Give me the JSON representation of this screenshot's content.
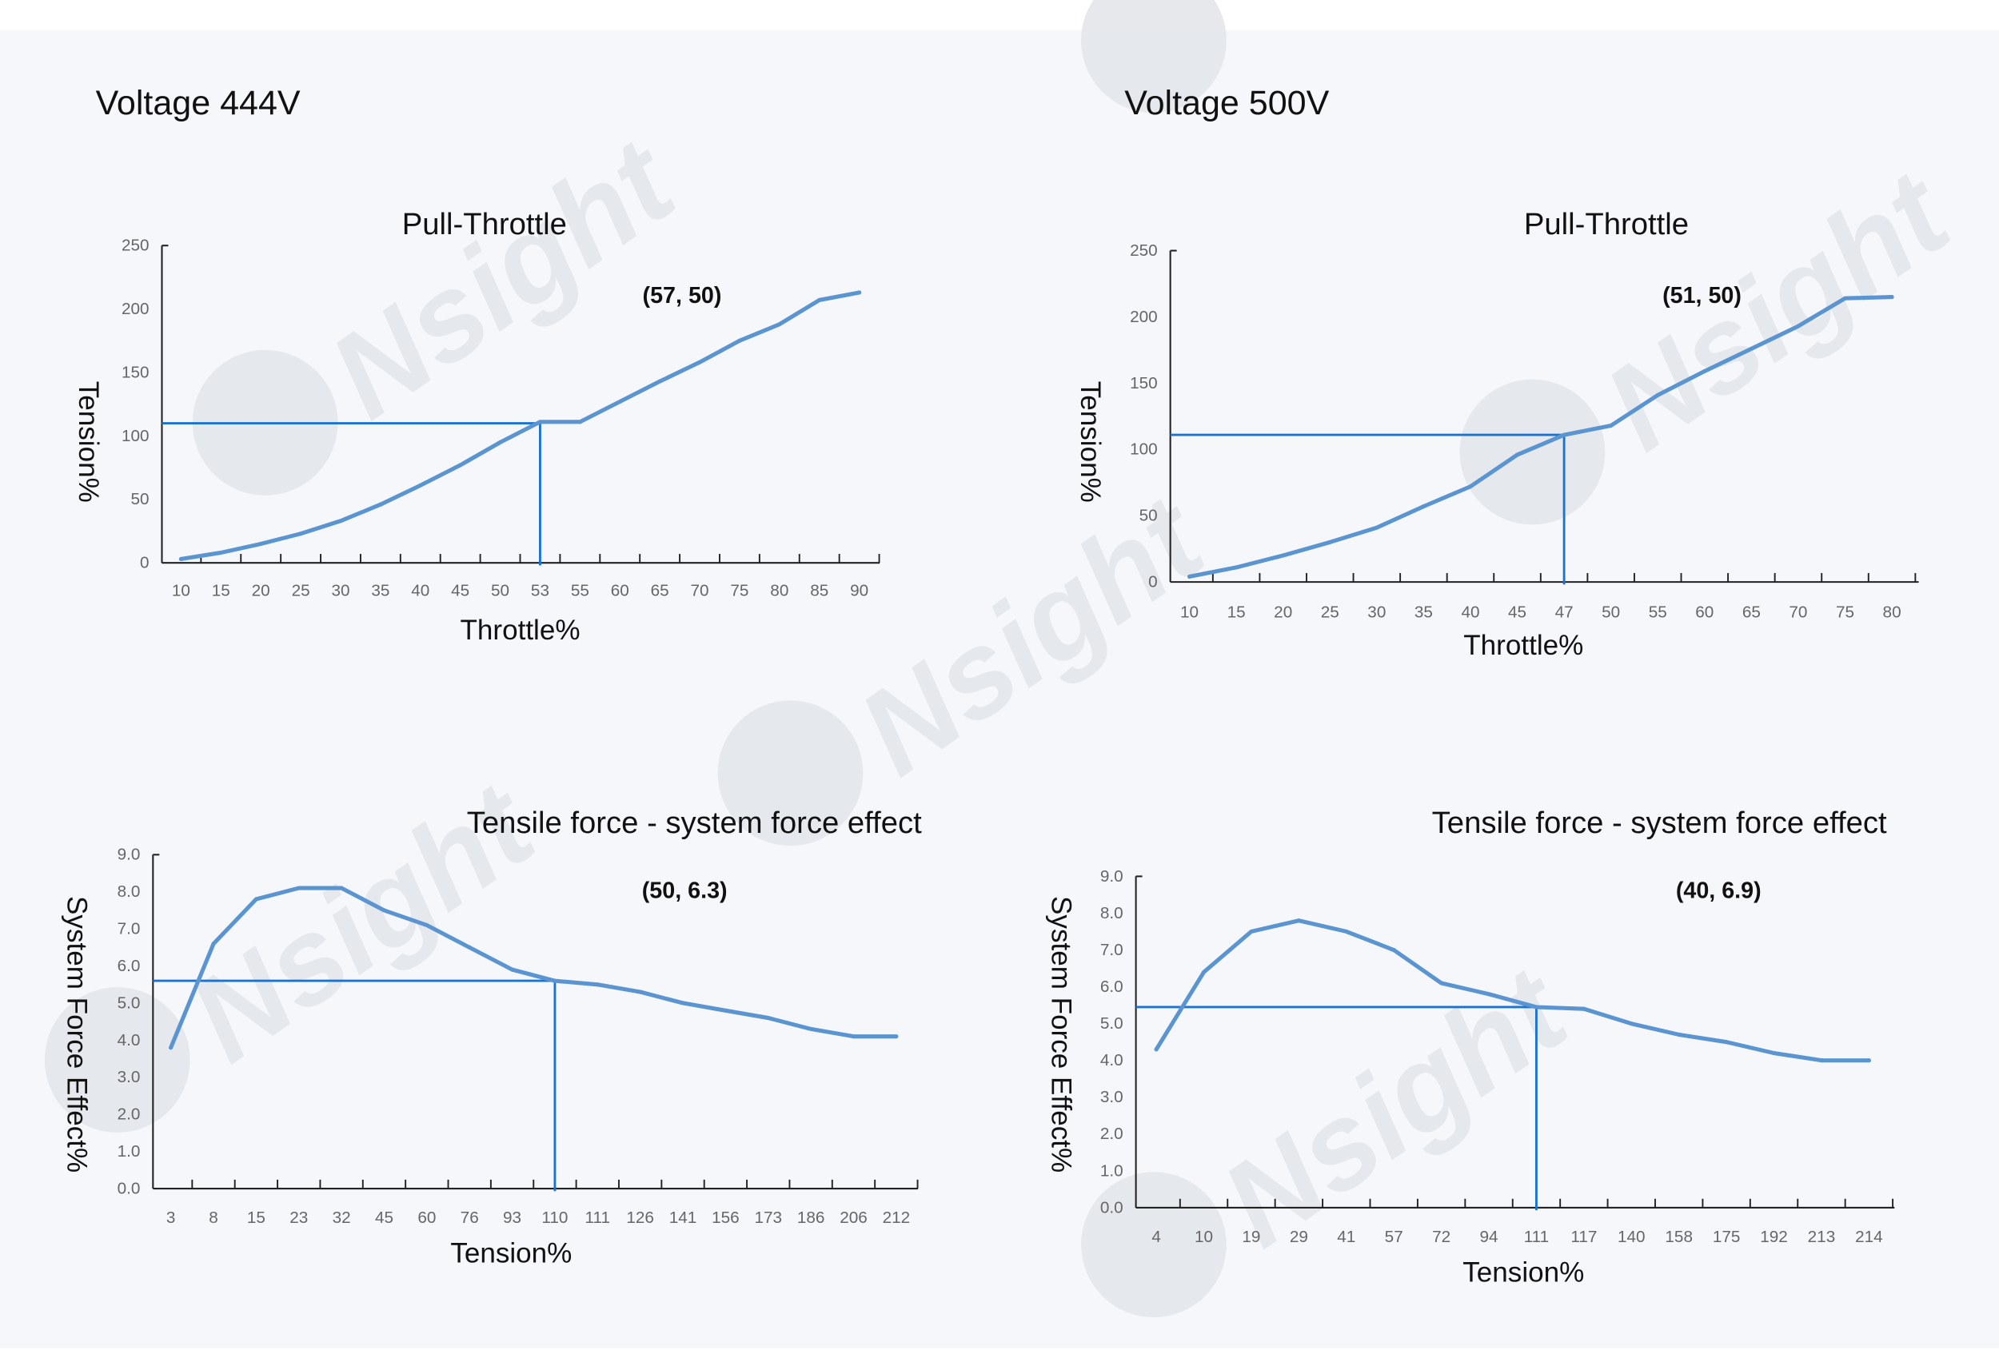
{
  "watermark": "Nsight",
  "colors": {
    "background": "#f5f7fb",
    "series": "#5b95d1",
    "reference": "#1a73d0",
    "axis": "#222222"
  },
  "panels": [
    {
      "heading": "Voltage 444V"
    },
    {
      "heading": "Voltage 500V"
    }
  ],
  "chart_data": [
    {
      "type": "line",
      "title": "Pull-Throttle",
      "xlabel": "Throttle%",
      "ylabel": "Tension%",
      "annotation": "(57,  50)",
      "categories": [
        "10",
        "15",
        "20",
        "25",
        "30",
        "35",
        "40",
        "45",
        "50",
        "53",
        "55",
        "60",
        "65",
        "70",
        "75",
        "80",
        "85",
        "90"
      ],
      "values": [
        3,
        8,
        15,
        23,
        33,
        46,
        61,
        77,
        95,
        111,
        111,
        127,
        143,
        158,
        175,
        188,
        207,
        213
      ],
      "yticks": [
        "0",
        "50",
        "100",
        "150",
        "200",
        "250"
      ],
      "ylim": [
        0,
        250
      ],
      "reference": {
        "x": "53",
        "y": 110
      }
    },
    {
      "type": "line",
      "title": "Pull-Throttle",
      "xlabel": "Throttle%",
      "ylabel": "Tension%",
      "annotation": "(51,  50)",
      "categories": [
        "10",
        "15",
        "20",
        "25",
        "30",
        "35",
        "40",
        "45",
        "47",
        "50",
        "55",
        "60",
        "65",
        "70",
        "75",
        "80"
      ],
      "values": [
        4,
        11,
        20,
        30,
        41,
        57,
        72,
        96,
        111,
        118,
        141,
        159,
        176,
        193,
        214,
        215
      ],
      "yticks": [
        "0",
        "50",
        "100",
        "150",
        "200",
        "250"
      ],
      "ylim": [
        0,
        250
      ],
      "reference": {
        "x": "47",
        "y": 111
      }
    },
    {
      "type": "line",
      "title": "Tensile force - system force effect",
      "xlabel": "Tension%",
      "ylabel": "System Force Effect%",
      "annotation": "(50,  6.3)",
      "categories": [
        "3",
        "8",
        "15",
        "23",
        "32",
        "45",
        "60",
        "76",
        "93",
        "110",
        "111",
        "126",
        "141",
        "156",
        "173",
        "186",
        "206",
        "212"
      ],
      "values": [
        3.8,
        6.6,
        7.8,
        8.1,
        8.1,
        7.5,
        7.1,
        6.5,
        5.9,
        5.6,
        5.5,
        5.3,
        5.0,
        4.8,
        4.6,
        4.3,
        4.1,
        4.1
      ],
      "yticks": [
        "0.0",
        "1.0",
        "2.0",
        "3.0",
        "4.0",
        "5.0",
        "6.0",
        "7.0",
        "8.0",
        "9.0"
      ],
      "ylim": [
        0,
        9
      ],
      "reference": {
        "x": "110",
        "y": 5.6
      }
    },
    {
      "type": "line",
      "title": "Tensile force - system force effect",
      "xlabel": "Tension%",
      "ylabel": "System Force Effect%",
      "annotation": "(40,  6.9)",
      "categories": [
        "4",
        "10",
        "19",
        "29",
        "41",
        "57",
        "72",
        "94",
        "111",
        "117",
        "140",
        "158",
        "175",
        "192",
        "213",
        "214"
      ],
      "values": [
        4.3,
        6.4,
        7.5,
        7.8,
        7.5,
        7.0,
        6.1,
        5.8,
        5.45,
        5.4,
        5.0,
        4.7,
        4.5,
        4.2,
        4.0,
        4.0
      ],
      "yticks": [
        "0.0",
        "1.0",
        "2.0",
        "3.0",
        "4.0",
        "5.0",
        "6.0",
        "7.0",
        "8.0",
        "9.0"
      ],
      "ylim": [
        0,
        9
      ],
      "reference": {
        "x": "111",
        "y": 5.45
      }
    }
  ]
}
